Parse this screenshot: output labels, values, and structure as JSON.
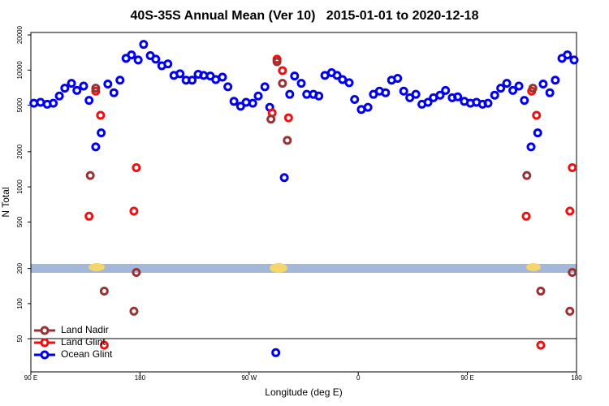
{
  "chart_data": {
    "type": "scatter",
    "title": "40S-35S Annual Mean (Ver 10)   2015-01-01 to 2020-12-18",
    "x_label": "Longitude (deg E)",
    "y_label": "N Total",
    "xlim": [
      90,
      540
    ],
    "ylim": [
      26,
      21000
    ],
    "y_scale": "log",
    "legend": "lower left",
    "xticks": [
      {
        "value": 90,
        "label": "90 E"
      },
      180,
      {
        "value": 270,
        "label": "90 W"
      },
      {
        "value": 360,
        "label": "0"
      },
      {
        "value": 450,
        "label": "90 E"
      },
      {
        "value": 540,
        "label": "180"
      }
    ],
    "yticks": [
      50,
      100,
      200,
      500,
      1000,
      2000,
      5000,
      10000,
      20000
    ],
    "series": [
      {
        "name": "Land Nadir",
        "color": "#993333",
        "x": [
          139,
          143.5,
          150.5,
          175,
          177,
          288,
          293,
          297.5,
          301.5,
          499,
          504,
          510.5,
          534.5,
          536.5
        ],
        "values": [
          1250,
          7000,
          128,
          86,
          185,
          3800,
          11800,
          7700,
          2500,
          1250,
          7000,
          128,
          86,
          185
        ]
      },
      {
        "name": "Land Glint",
        "color": "#ee1111",
        "x": [
          138,
          143.5,
          147.5,
          150.5,
          175,
          177,
          289,
          293,
          297.5,
          302.5,
          498.5,
          503,
          507,
          510.5,
          534.5,
          536.5
        ],
        "values": [
          560,
          6600,
          4100,
          44,
          620,
          1460,
          4300,
          12400,
          9900,
          3900,
          560,
          6600,
          4100,
          44,
          620,
          1460
        ]
      },
      {
        "name": "Ocean Glint",
        "color": "#0000ee",
        "x": [
          92.5,
          98,
          103.5,
          108.5,
          113.5,
          118,
          123.5,
          128,
          133.5,
          138,
          143.5,
          148,
          153.5,
          158.5,
          163.5,
          168.5,
          173,
          178.5,
          183,
          188.5,
          193,
          198,
          203,
          208,
          213,
          218,
          223,
          228,
          232.5,
          238,
          242.5,
          248,
          252.5,
          257.5,
          263,
          267.5,
          273,
          277.5,
          283,
          287,
          292,
          299,
          303.5,
          307.5,
          313,
          317.5,
          323,
          327.5,
          332.5,
          338,
          342.5,
          347,
          352.5,
          357,
          362.5,
          368,
          372.5,
          377.5,
          382.5,
          387.5,
          392.5,
          397.5,
          402.5,
          407.5,
          412.5,
          417.5,
          422,
          427.5,
          432,
          437.5,
          442,
          447.5,
          452.5,
          457.5,
          462.5,
          467,
          472.5,
          477.5,
          482.5,
          487.5,
          492.5,
          497,
          502.5,
          508,
          512.5,
          518,
          522.5,
          528,
          532.5,
          538
        ],
        "values": [
          5200,
          5300,
          5100,
          5200,
          6000,
          7000,
          7700,
          6700,
          7300,
          5500,
          2200,
          2900,
          7600,
          6400,
          8200,
          12600,
          13500,
          12200,
          16600,
          13300,
          12400,
          10900,
          11300,
          9000,
          9300,
          8200,
          8200,
          9200,
          9000,
          8900,
          8300,
          8700,
          7200,
          5400,
          4900,
          5300,
          5200,
          6000,
          7200,
          4800,
          38,
          1200,
          6200,
          8900,
          7700,
          6200,
          6200,
          6000,
          9000,
          9500,
          9000,
          8300,
          7800,
          5600,
          4600,
          4800,
          6200,
          6600,
          6400,
          8200,
          8500,
          6600,
          5800,
          6200,
          5100,
          5300,
          5800,
          6100,
          6700,
          5800,
          5900,
          5400,
          5200,
          5300,
          5100,
          5200,
          6100,
          7000,
          7700,
          6700,
          7300,
          5500,
          2200,
          2900,
          7600,
          6400,
          8200,
          12600,
          13500,
          12200
        ]
      }
    ]
  }
}
